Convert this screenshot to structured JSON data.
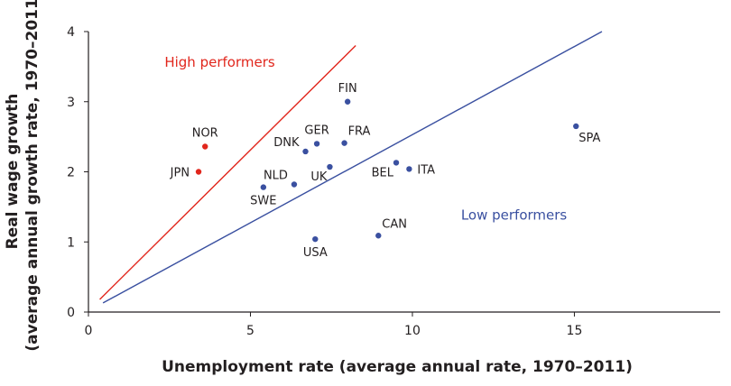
{
  "chart_data": {
    "type": "scatter",
    "xlabel": "Unemployment rate (average annual rate, 1970–2011)",
    "ylabel_line1": "Real wage growth",
    "ylabel_line2": "(average annual growth rate, 1970–2011)",
    "xlim": [
      0,
      19.5
    ],
    "ylim": [
      0,
      4
    ],
    "xticks": [
      0,
      5,
      10,
      15
    ],
    "yticks": [
      0,
      1,
      2,
      3,
      4
    ],
    "grid": false,
    "points": [
      {
        "label": "NOR",
        "x": 3.6,
        "y": 2.36,
        "group": "high",
        "label_pos": "above"
      },
      {
        "label": "JPN",
        "x": 3.4,
        "y": 2.0,
        "group": "high",
        "label_pos": "left"
      },
      {
        "label": "FIN",
        "x": 8.0,
        "y": 3.0,
        "group": "low",
        "label_pos": "above"
      },
      {
        "label": "GER",
        "x": 7.05,
        "y": 2.4,
        "group": "low",
        "label_pos": "above"
      },
      {
        "label": "FRA",
        "x": 7.9,
        "y": 2.41,
        "group": "low",
        "label_pos": "above-right"
      },
      {
        "label": "DNK",
        "x": 6.7,
        "y": 2.29,
        "group": "low",
        "label_pos": "above-left"
      },
      {
        "label": "UK",
        "x": 7.45,
        "y": 2.07,
        "group": "low",
        "label_pos": "below-left"
      },
      {
        "label": "NLD",
        "x": 6.35,
        "y": 1.82,
        "group": "low",
        "label_pos": "above-left"
      },
      {
        "label": "SWE",
        "x": 5.4,
        "y": 1.78,
        "group": "low",
        "label_pos": "below"
      },
      {
        "label": "BEL",
        "x": 9.5,
        "y": 2.13,
        "group": "low",
        "label_pos": "below-left"
      },
      {
        "label": "ITA",
        "x": 9.9,
        "y": 2.04,
        "group": "low",
        "label_pos": "right"
      },
      {
        "label": "SPA",
        "x": 15.05,
        "y": 2.65,
        "group": "low",
        "label_pos": "below-right"
      },
      {
        "label": "CAN",
        "x": 8.95,
        "y": 1.09,
        "group": "low",
        "label_pos": "above-right"
      },
      {
        "label": "USA",
        "x": 7.0,
        "y": 1.04,
        "group": "low",
        "label_pos": "below"
      }
    ],
    "lines": [
      {
        "name": "high",
        "color": "#e1261c",
        "x1": 0.35,
        "y1": 0.18,
        "x2": 8.25,
        "y2": 3.8
      },
      {
        "name": "low",
        "color": "#3a50a0",
        "x1": 0.45,
        "y1": 0.13,
        "x2": 15.85,
        "y2": 4.0
      }
    ],
    "annotations": [
      {
        "name": "high-performers-label",
        "text": "High performers",
        "x": 2.35,
        "y": 3.5,
        "color": "#e1261c"
      },
      {
        "name": "low-performers-label",
        "text": "Low performers",
        "x": 11.5,
        "y": 1.32,
        "color": "#3a50a0"
      }
    ],
    "colors": {
      "high": "#e1261c",
      "low": "#3a50a0",
      "axis": "#231f20"
    }
  }
}
